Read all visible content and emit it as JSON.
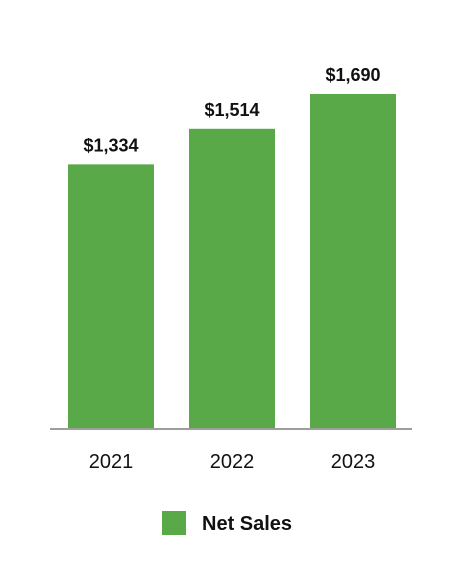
{
  "chart_data": {
    "type": "bar",
    "categories": [
      "2021",
      "2022",
      "2023"
    ],
    "series": [
      {
        "name": "Net Sales",
        "values": [
          1334,
          1514,
          1690
        ],
        "value_labels": [
          "$1,334",
          "$1,514",
          "$1,690"
        ],
        "color": "#5aa948"
      }
    ],
    "title": "",
    "xlabel": "",
    "ylabel": "",
    "ylim": [
      0,
      1690
    ],
    "grid": false,
    "legend_placement": "bottom-center",
    "axis_color": "#9e9e9e"
  }
}
